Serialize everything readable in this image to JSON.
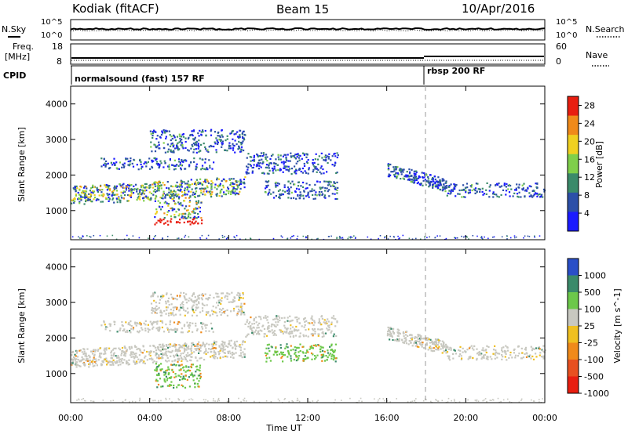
{
  "header": {
    "station": "Kodiak (fitACF)",
    "beam": "Beam 15",
    "date": "10/Apr/2016"
  },
  "strip": {
    "nsky_label": "N.Sky",
    "nsearch_label": "N.Search",
    "freq_label_1": "Freq.",
    "freq_label_2": "[MHz]",
    "nave_label": "Nave",
    "cpid_label": "CPID",
    "noise_ticks_left": [
      "10^5",
      "10^0"
    ],
    "noise_ticks_right": [
      "10^5",
      "10^0"
    ],
    "freq_ticks": [
      "18",
      "8"
    ],
    "nave_ticks": [
      "60",
      "0"
    ],
    "modes": [
      {
        "name": "normalsound (fast) 157 RF",
        "start_hour": 0
      },
      {
        "name": "rbsp 200 RF",
        "start_hour": 18
      }
    ]
  },
  "axes": {
    "ylabel": "Slant Range [km]",
    "xlabel": "Time UT",
    "y_ticks": [
      "1000",
      "2000",
      "3000",
      "4000"
    ],
    "x_ticks": [
      "00:00",
      "04:00",
      "08:00",
      "12:00",
      "16:00",
      "20:00",
      "00:00"
    ]
  },
  "chart_data": [
    {
      "type": "heatmap",
      "name": "power",
      "x_range_hours": [
        0,
        24
      ],
      "y_range_km": [
        180,
        4500
      ],
      "colorbar": {
        "label": "Power [dB]",
        "ticks": [
          "4",
          "8",
          "12",
          "16",
          "20",
          "24",
          "28"
        ],
        "range": [
          0,
          30
        ],
        "colors": [
          "#1b1bff",
          "#2c4fa8",
          "#3a8a6a",
          "#7fcf4a",
          "#f0d020",
          "#f08a1a",
          "#e81e10"
        ]
      },
      "echo_regions": [
        {
          "t0": 0.0,
          "t1": 8.8,
          "r0": 1180,
          "r1": 1980,
          "dir": "rising"
        },
        {
          "t0": 4.2,
          "t1": 6.6,
          "r0": 620,
          "r1": 1300
        },
        {
          "t0": 1.5,
          "t1": 7.2,
          "r0": 2180,
          "r1": 2500
        },
        {
          "t0": 4.0,
          "t1": 8.8,
          "r0": 2650,
          "r1": 3300
        },
        {
          "t0": 8.8,
          "t1": 13.5,
          "r0": 2050,
          "r1": 2650
        },
        {
          "t0": 9.8,
          "t1": 13.5,
          "r0": 1350,
          "r1": 1850
        },
        {
          "t0": 16.0,
          "t1": 19.0,
          "r0": 1550,
          "r1": 2350,
          "dir": "falling"
        },
        {
          "t0": 19.0,
          "t1": 24.0,
          "r0": 1400,
          "r1": 1800
        }
      ]
    },
    {
      "type": "heatmap",
      "name": "velocity",
      "x_range_hours": [
        0,
        24
      ],
      "y_range_km": [
        180,
        4500
      ],
      "colorbar": {
        "label": "Velocity [m s^-1]",
        "ticks": [
          "1000",
          "500",
          "100",
          "25",
          "-25",
          "-100",
          "-500",
          "-1000"
        ],
        "colors": [
          "#2a4fc8",
          "#3a8a6a",
          "#6cc84a",
          "#c8c8c0",
          "#f0c020",
          "#f08a1a",
          "#e85020",
          "#e81e10"
        ]
      },
      "echo_regions": [
        {
          "t0": 0.0,
          "t1": 8.8,
          "r0": 1180,
          "r1": 1980,
          "dir": "rising"
        },
        {
          "t0": 4.2,
          "t1": 6.6,
          "r0": 620,
          "r1": 1300
        },
        {
          "t0": 1.5,
          "t1": 7.2,
          "r0": 2180,
          "r1": 2500
        },
        {
          "t0": 4.0,
          "t1": 8.8,
          "r0": 2650,
          "r1": 3300
        },
        {
          "t0": 8.8,
          "t1": 13.5,
          "r0": 2050,
          "r1": 2650
        },
        {
          "t0": 9.8,
          "t1": 13.5,
          "r0": 1350,
          "r1": 1850
        },
        {
          "t0": 16.0,
          "t1": 19.0,
          "r0": 1550,
          "r1": 2350,
          "dir": "falling"
        },
        {
          "t0": 19.0,
          "t1": 24.0,
          "r0": 1400,
          "r1": 1800
        }
      ]
    }
  ]
}
